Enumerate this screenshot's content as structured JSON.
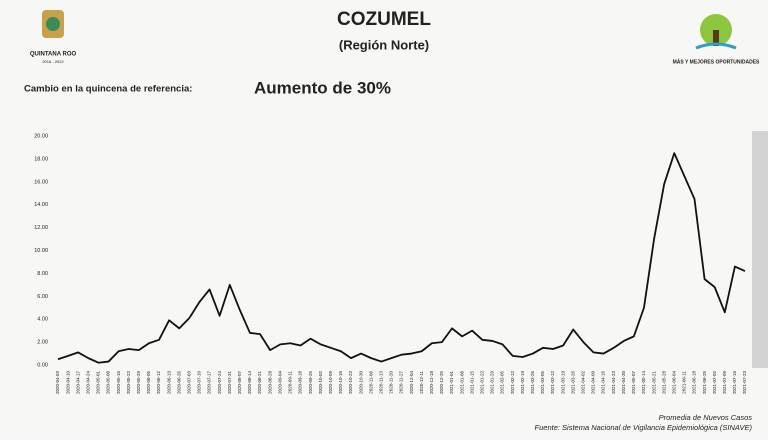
{
  "header": {
    "logo_left": "QUINTANA ROO",
    "logo_left_years": "2016 - 2022",
    "title": "COZUMEL",
    "subtitle": "(Región Norte)",
    "logo_right": "MÁS Y MEJORES OPORTUNIDADES",
    "change_label": "Cambio en la quincena de referencia:",
    "change_value": "Aumento de 30%"
  },
  "chart_data": {
    "type": "line",
    "x": [
      "2020-04-03",
      "2020-04-10",
      "2020-04-17",
      "2020-04-24",
      "2020-05-01",
      "2020-05-08",
      "2020-05-15",
      "2020-05-22",
      "2020-05-29",
      "2020-06-05",
      "2020-06-12",
      "2020-06-19",
      "2020-06-26",
      "2020-07-03",
      "2020-07-10",
      "2020-07-17",
      "2020-07-24",
      "2020-07-31",
      "2020-08-07",
      "2020-08-14",
      "2020-08-21",
      "2020-08-28",
      "2020-09-04",
      "2020-09-11",
      "2020-09-18",
      "2020-09-25",
      "2020-10-02",
      "2020-10-09",
      "2020-10-16",
      "2020-10-23",
      "2020-10-30",
      "2020-11-06",
      "2020-11-13",
      "2020-11-20",
      "2020-11-27",
      "2020-12-04",
      "2020-12-11",
      "2020-12-18",
      "2020-12-25",
      "2021-01-01",
      "2021-01-08",
      "2021-01-15",
      "2021-01-22",
      "2021-01-29",
      "2021-02-05",
      "2021-02-12",
      "2021-02-19",
      "2021-02-26",
      "2021-03-05",
      "2021-03-12",
      "2021-03-19",
      "2021-03-26",
      "2021-04-02",
      "2021-04-09",
      "2021-04-16",
      "2021-04-23",
      "2021-04-30",
      "2021-05-07",
      "2021-05-14",
      "2021-05-21",
      "2021-05-28",
      "2021-06-04",
      "2021-06-11",
      "2021-06-18",
      "2021-06-25",
      "2021-07-02",
      "2021-07-09",
      "2021-07-16",
      "2021-07-23"
    ],
    "series": [
      {
        "color": "#111111",
        "values": [
          0.5,
          0.8,
          1.1,
          0.6,
          0.2,
          0.3,
          1.2,
          1.4,
          1.3,
          1.9,
          2.2,
          3.9,
          3.2,
          4.1,
          5.5,
          6.6,
          4.3,
          7.0,
          4.8,
          2.8,
          2.7,
          1.3,
          1.8,
          1.9,
          1.7,
          2.3,
          1.8,
          1.5,
          1.2,
          0.6,
          1.0,
          0.6,
          0.3,
          0.6,
          0.9,
          1.0,
          1.2,
          1.9,
          2.0,
          3.2,
          2.5,
          3.0,
          2.2,
          2.1,
          1.8,
          0.8,
          0.7,
          1.0,
          1.5,
          1.4,
          1.7,
          3.1,
          2.0,
          1.1,
          1.0,
          1.5,
          2.1,
          2.5,
          5.0,
          11.0,
          15.8,
          18.5,
          16.5,
          14.5,
          7.5,
          6.8,
          4.6,
          8.6,
          8.2
        ]
      }
    ],
    "ylim": [
      0,
      20
    ],
    "yticks": [
      {
        "value": 0,
        "label": "0.00"
      },
      {
        "value": 2,
        "label": "2.00"
      },
      {
        "value": 4,
        "label": "4.00"
      },
      {
        "value": 6,
        "label": "6.00"
      },
      {
        "value": 8,
        "label": "8.00"
      },
      {
        "value": 10,
        "label": "10.00"
      },
      {
        "value": 12,
        "label": "12.00"
      },
      {
        "value": 14,
        "label": "14.00"
      },
      {
        "value": 16,
        "label": "16.00"
      },
      {
        "value": 18,
        "label": "18.00"
      },
      {
        "value": 20,
        "label": "20.00"
      }
    ],
    "grid": false
  },
  "footer": {
    "series_note": "Promedia de Nuevos Casos",
    "source": "Fuente: Sistema Nacional de Vigilancia Epidemiológica (SINAVE)"
  }
}
